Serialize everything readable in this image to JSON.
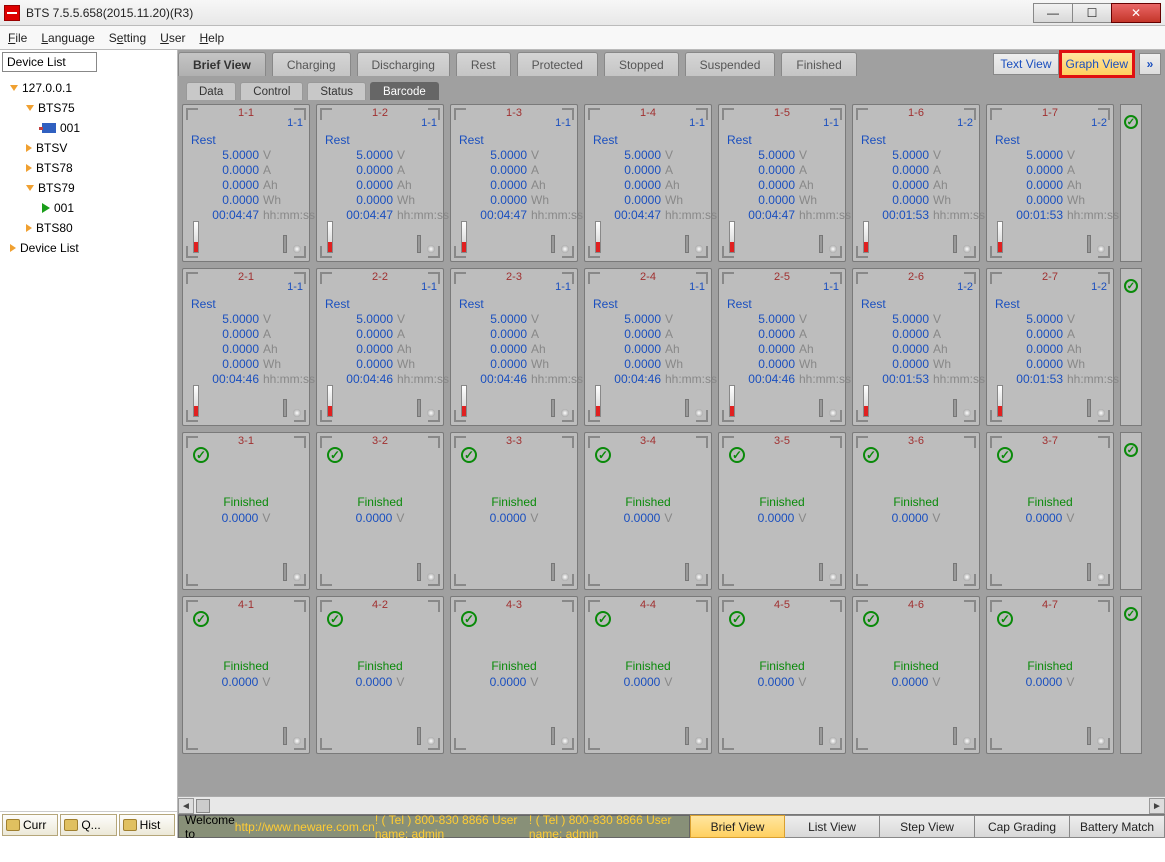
{
  "window": {
    "title": "BTS 7.5.5.658(2015.11.20)(R3)"
  },
  "menu": {
    "file": "File",
    "language": "Language",
    "setting": "Setting",
    "user": "User",
    "help": "Help"
  },
  "sidebar": {
    "label": "Device List",
    "tree": {
      "root": "127.0.0.1",
      "bts75": "BTS75",
      "dev001a": "001",
      "btsv": "BTSV",
      "bts78": "BTS78",
      "bts79": "BTS79",
      "dev001b": "001",
      "bts80": "BTS80",
      "devlist": "Device List"
    },
    "bottom": {
      "curr": "Curr",
      "q": "Q...",
      "hist": "Hist"
    }
  },
  "viewtabs": {
    "brief": "Brief View",
    "charging": "Charging",
    "discharging": "Discharging",
    "rest": "Rest",
    "protected": "Protected",
    "stopped": "Stopped",
    "suspended": "Suspended",
    "finished": "Finished",
    "textview": "Text View",
    "graphview": "Graph View"
  },
  "subtabs": {
    "data": "Data",
    "control": "Control",
    "status": "Status",
    "barcode": "Barcode"
  },
  "units": {
    "v": "V",
    "a": "A",
    "ah": "Ah",
    "wh": "Wh",
    "t": "hh:mm:ss"
  },
  "labels": {
    "rest": "Rest",
    "finished": "Finished"
  },
  "rows": [
    {
      "type": "rest",
      "cells": [
        {
          "id": "1-1",
          "step": "1-1",
          "v": "5.0000",
          "a": "0.0000",
          "ah": "0.0000",
          "wh": "0.0000",
          "t": "00:04:47"
        },
        {
          "id": "1-2",
          "step": "1-1",
          "v": "5.0000",
          "a": "0.0000",
          "ah": "0.0000",
          "wh": "0.0000",
          "t": "00:04:47"
        },
        {
          "id": "1-3",
          "step": "1-1",
          "v": "5.0000",
          "a": "0.0000",
          "ah": "0.0000",
          "wh": "0.0000",
          "t": "00:04:47"
        },
        {
          "id": "1-4",
          "step": "1-1",
          "v": "5.0000",
          "a": "0.0000",
          "ah": "0.0000",
          "wh": "0.0000",
          "t": "00:04:47"
        },
        {
          "id": "1-5",
          "step": "1-1",
          "v": "5.0000",
          "a": "0.0000",
          "ah": "0.0000",
          "wh": "0.0000",
          "t": "00:04:47"
        },
        {
          "id": "1-6",
          "step": "1-2",
          "v": "5.0000",
          "a": "0.0000",
          "ah": "0.0000",
          "wh": "0.0000",
          "t": "00:01:53"
        },
        {
          "id": "1-7",
          "step": "1-2",
          "v": "5.0000",
          "a": "0.0000",
          "ah": "0.0000",
          "wh": "0.0000",
          "t": "00:01:53"
        }
      ],
      "edge_check": true
    },
    {
      "type": "rest",
      "cells": [
        {
          "id": "2-1",
          "step": "1-1",
          "v": "5.0000",
          "a": "0.0000",
          "ah": "0.0000",
          "wh": "0.0000",
          "t": "00:04:46"
        },
        {
          "id": "2-2",
          "step": "1-1",
          "v": "5.0000",
          "a": "0.0000",
          "ah": "0.0000",
          "wh": "0.0000",
          "t": "00:04:46"
        },
        {
          "id": "2-3",
          "step": "1-1",
          "v": "5.0000",
          "a": "0.0000",
          "ah": "0.0000",
          "wh": "0.0000",
          "t": "00:04:46"
        },
        {
          "id": "2-4",
          "step": "1-1",
          "v": "5.0000",
          "a": "0.0000",
          "ah": "0.0000",
          "wh": "0.0000",
          "t": "00:04:46"
        },
        {
          "id": "2-5",
          "step": "1-1",
          "v": "5.0000",
          "a": "0.0000",
          "ah": "0.0000",
          "wh": "0.0000",
          "t": "00:04:46"
        },
        {
          "id": "2-6",
          "step": "1-2",
          "v": "5.0000",
          "a": "0.0000",
          "ah": "0.0000",
          "wh": "0.0000",
          "t": "00:01:53"
        },
        {
          "id": "2-7",
          "step": "1-2",
          "v": "5.0000",
          "a": "0.0000",
          "ah": "0.0000",
          "wh": "0.0000",
          "t": "00:01:53"
        }
      ],
      "edge_check": true
    },
    {
      "type": "finished",
      "cells": [
        {
          "id": "3-1",
          "v": "0.0000"
        },
        {
          "id": "3-2",
          "v": "0.0000"
        },
        {
          "id": "3-3",
          "v": "0.0000"
        },
        {
          "id": "3-4",
          "v": "0.0000"
        },
        {
          "id": "3-5",
          "v": "0.0000"
        },
        {
          "id": "3-6",
          "v": "0.0000"
        },
        {
          "id": "3-7",
          "v": "0.0000"
        }
      ],
      "edge_check": true
    },
    {
      "type": "finished",
      "cells": [
        {
          "id": "4-1",
          "v": "0.0000"
        },
        {
          "id": "4-2",
          "v": "0.0000"
        },
        {
          "id": "4-3",
          "v": "0.0000"
        },
        {
          "id": "4-4",
          "v": "0.0000"
        },
        {
          "id": "4-5",
          "v": "0.0000"
        },
        {
          "id": "4-6",
          "v": "0.0000"
        },
        {
          "id": "4-7",
          "v": "0.0000"
        }
      ],
      "edge_check": true
    }
  ],
  "footer": {
    "welcome_pre": "Welcome to ",
    "welcome_url": "http://www.neware.com.cn",
    "welcome_post": " !    ( Tel ) 800-830 8866  User name: admin",
    "brief": "Brief View",
    "list": "List View",
    "step": "Step View",
    "cap": "Cap Grading",
    "battery": "Battery Match"
  },
  "colors": {
    "accent_blue": "#1a4fbf",
    "id_red": "#a03030",
    "finished_green": "#0a8a0a",
    "cell_bg": "#bdbdbd",
    "content_bg": "#a0a0a0",
    "highlight": "#e01010"
  }
}
